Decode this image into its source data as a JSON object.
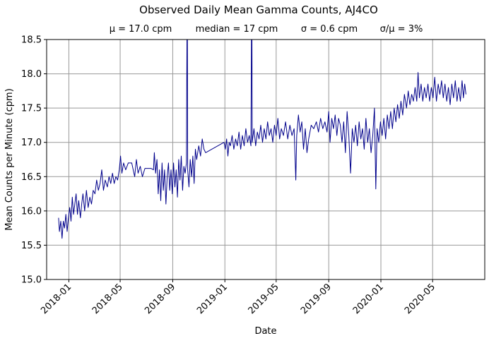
{
  "chart_data": {
    "type": "line",
    "title": "Observed Daily Mean Gamma Counts, AJ4CO",
    "subtitle": [
      "μ = 17.0 cpm",
      "median = 17 cpm",
      "σ = 0.6 cpm",
      "σ/μ = 3%"
    ],
    "xlabel": "Date",
    "ylabel": "Mean Counts per Minute (cpm)",
    "ylim": [
      15.0,
      18.5
    ],
    "xlim": [
      "2017-11-10",
      "2020-08-31"
    ],
    "yticks": [
      "15.0",
      "15.5",
      "16.0",
      "16.5",
      "17.0",
      "17.5",
      "18.0",
      "18.5"
    ],
    "xticks": [
      "2018-01",
      "2018-05",
      "2018-09",
      "2019-01",
      "2019-05",
      "2019-09",
      "2020-01",
      "2020-05"
    ],
    "grid": true,
    "line_color": "#00008b",
    "series": [
      {
        "name": "Daily mean gamma counts",
        "points": [
          [
            "2017-12-08",
            15.9
          ],
          [
            "2017-12-10",
            15.7
          ],
          [
            "2017-12-13",
            15.85
          ],
          [
            "2017-12-16",
            15.6
          ],
          [
            "2017-12-19",
            15.85
          ],
          [
            "2017-12-22",
            15.75
          ],
          [
            "2017-12-25",
            15.95
          ],
          [
            "2017-12-28",
            15.7
          ],
          [
            "2017-12-31",
            15.9
          ],
          [
            "2018-01-03",
            16.05
          ],
          [
            "2018-01-06",
            15.85
          ],
          [
            "2018-01-09",
            16.2
          ],
          [
            "2018-01-12",
            15.95
          ],
          [
            "2018-01-15",
            16.1
          ],
          [
            "2018-01-18",
            16.25
          ],
          [
            "2018-01-21",
            15.95
          ],
          [
            "2018-01-24",
            16.15
          ],
          [
            "2018-01-28",
            15.9
          ],
          [
            "2018-01-31",
            16.1
          ],
          [
            "2018-02-03",
            16.25
          ],
          [
            "2018-02-07",
            16.0
          ],
          [
            "2018-02-11",
            16.3
          ],
          [
            "2018-02-15",
            16.05
          ],
          [
            "2018-02-19",
            16.2
          ],
          [
            "2018-02-23",
            16.1
          ],
          [
            "2018-02-27",
            16.3
          ],
          [
            "2018-03-03",
            16.25
          ],
          [
            "2018-03-07",
            16.45
          ],
          [
            "2018-03-11",
            16.3
          ],
          [
            "2018-03-15",
            16.4
          ],
          [
            "2018-03-19",
            16.6
          ],
          [
            "2018-03-23",
            16.3
          ],
          [
            "2018-03-27",
            16.45
          ],
          [
            "2018-04-01",
            16.35
          ],
          [
            "2018-04-05",
            16.5
          ],
          [
            "2018-04-09",
            16.4
          ],
          [
            "2018-04-13",
            16.55
          ],
          [
            "2018-04-17",
            16.4
          ],
          [
            "2018-04-21",
            16.5
          ],
          [
            "2018-04-25",
            16.45
          ],
          [
            "2018-04-29",
            16.6
          ],
          [
            "2018-05-02",
            16.8
          ],
          [
            "2018-05-05",
            16.55
          ],
          [
            "2018-05-09",
            16.7
          ],
          [
            "2018-05-14",
            16.6
          ],
          [
            "2018-05-20",
            16.7
          ],
          [
            "2018-05-28",
            16.7
          ],
          [
            "2018-06-04",
            16.5
          ],
          [
            "2018-06-08",
            16.75
          ],
          [
            "2018-06-12",
            16.55
          ],
          [
            "2018-06-17",
            16.65
          ],
          [
            "2018-06-22",
            16.5
          ],
          [
            "2018-06-28",
            16.62
          ],
          [
            "2018-07-05",
            16.62
          ],
          [
            "2018-07-12",
            16.62
          ],
          [
            "2018-07-18",
            16.6
          ],
          [
            "2018-07-20",
            16.85
          ],
          [
            "2018-07-23",
            16.55
          ],
          [
            "2018-07-26",
            16.75
          ],
          [
            "2018-07-29",
            16.25
          ],
          [
            "2018-08-01",
            16.6
          ],
          [
            "2018-08-04",
            16.15
          ],
          [
            "2018-08-07",
            16.7
          ],
          [
            "2018-08-10",
            16.3
          ],
          [
            "2018-08-13",
            16.6
          ],
          [
            "2018-08-16",
            16.1
          ],
          [
            "2018-08-19",
            16.5
          ],
          [
            "2018-08-22",
            16.7
          ],
          [
            "2018-08-25",
            16.3
          ],
          [
            "2018-08-28",
            16.6
          ],
          [
            "2018-08-31",
            16.25
          ],
          [
            "2018-09-03",
            16.7
          ],
          [
            "2018-09-06",
            16.35
          ],
          [
            "2018-09-09",
            16.6
          ],
          [
            "2018-09-12",
            16.2
          ],
          [
            "2018-09-15",
            16.75
          ],
          [
            "2018-09-18",
            16.45
          ],
          [
            "2018-09-21",
            16.8
          ],
          [
            "2018-09-24",
            16.3
          ],
          [
            "2018-09-27",
            16.65
          ],
          [
            "2018-09-30",
            16.55
          ],
          [
            "2018-10-03",
            16.7
          ],
          [
            "2018-10-05",
            19.5
          ],
          [
            "2018-10-06",
            16.6
          ],
          [
            "2018-10-09",
            16.35
          ],
          [
            "2018-10-12",
            16.75
          ],
          [
            "2018-10-15",
            16.5
          ],
          [
            "2018-10-18",
            16.8
          ],
          [
            "2018-10-21",
            16.4
          ],
          [
            "2018-10-24",
            16.9
          ],
          [
            "2018-10-27",
            16.75
          ],
          [
            "2018-11-01",
            16.95
          ],
          [
            "2018-11-05",
            16.8
          ],
          [
            "2018-11-09",
            17.05
          ],
          [
            "2018-11-13",
            16.9
          ],
          [
            "2018-11-17",
            16.85
          ],
          [
            "2018-12-30",
            17.0
          ],
          [
            "2019-01-02",
            16.9
          ],
          [
            "2019-01-05",
            17.05
          ],
          [
            "2019-01-08",
            16.8
          ],
          [
            "2019-01-11",
            17.0
          ],
          [
            "2019-01-14",
            16.95
          ],
          [
            "2019-01-18",
            17.1
          ],
          [
            "2019-01-22",
            16.9
          ],
          [
            "2019-01-26",
            17.05
          ],
          [
            "2019-01-30",
            16.95
          ],
          [
            "2019-02-03",
            17.15
          ],
          [
            "2019-02-07",
            16.9
          ],
          [
            "2019-02-11",
            17.1
          ],
          [
            "2019-02-15",
            16.95
          ],
          [
            "2019-02-19",
            17.2
          ],
          [
            "2019-02-23",
            17.0
          ],
          [
            "2019-02-27",
            17.1
          ],
          [
            "2019-03-03",
            16.95
          ],
          [
            "2019-03-05",
            19.5
          ],
          [
            "2019-03-06",
            17.0
          ],
          [
            "2019-03-10",
            17.2
          ],
          [
            "2019-03-14",
            16.95
          ],
          [
            "2019-03-18",
            17.15
          ],
          [
            "2019-03-22",
            17.05
          ],
          [
            "2019-03-26",
            17.25
          ],
          [
            "2019-03-30",
            17.0
          ],
          [
            "2019-04-03",
            17.2
          ],
          [
            "2019-04-07",
            17.05
          ],
          [
            "2019-04-11",
            17.3
          ],
          [
            "2019-04-15",
            17.1
          ],
          [
            "2019-04-19",
            17.2
          ],
          [
            "2019-04-23",
            17.0
          ],
          [
            "2019-04-27",
            17.25
          ],
          [
            "2019-05-01",
            17.1
          ],
          [
            "2019-05-05",
            17.35
          ],
          [
            "2019-05-09",
            17.05
          ],
          [
            "2019-05-13",
            17.2
          ],
          [
            "2019-05-18",
            17.1
          ],
          [
            "2019-05-23",
            17.3
          ],
          [
            "2019-05-28",
            17.05
          ],
          [
            "2019-06-02",
            17.25
          ],
          [
            "2019-06-07",
            17.1
          ],
          [
            "2019-06-12",
            17.2
          ],
          [
            "2019-06-16",
            16.45
          ],
          [
            "2019-06-18",
            17.1
          ],
          [
            "2019-06-22",
            17.4
          ],
          [
            "2019-06-26",
            17.15
          ],
          [
            "2019-06-30",
            17.3
          ],
          [
            "2019-07-04",
            16.9
          ],
          [
            "2019-07-08",
            17.2
          ],
          [
            "2019-07-12",
            16.85
          ],
          [
            "2019-07-16",
            17.05
          ],
          [
            "2019-07-22",
            17.25
          ],
          [
            "2019-07-28",
            17.2
          ],
          [
            "2019-08-03",
            17.3
          ],
          [
            "2019-08-08",
            17.15
          ],
          [
            "2019-08-13",
            17.35
          ],
          [
            "2019-08-18",
            17.2
          ],
          [
            "2019-08-23",
            17.3
          ],
          [
            "2019-08-28",
            17.15
          ],
          [
            "2019-09-01",
            17.45
          ],
          [
            "2019-09-04",
            17.0
          ],
          [
            "2019-09-08",
            17.35
          ],
          [
            "2019-09-12",
            17.2
          ],
          [
            "2019-09-16",
            17.4
          ],
          [
            "2019-09-20",
            17.1
          ],
          [
            "2019-09-24",
            17.35
          ],
          [
            "2019-09-28",
            17.25
          ],
          [
            "2019-10-02",
            17.0
          ],
          [
            "2019-10-06",
            17.3
          ],
          [
            "2019-10-10",
            16.85
          ],
          [
            "2019-10-14",
            17.45
          ],
          [
            "2019-10-18",
            17.1
          ],
          [
            "2019-10-22",
            16.55
          ],
          [
            "2019-10-26",
            17.2
          ],
          [
            "2019-10-30",
            17.0
          ],
          [
            "2019-11-03",
            17.25
          ],
          [
            "2019-11-07",
            16.95
          ],
          [
            "2019-11-11",
            17.3
          ],
          [
            "2019-11-15",
            17.05
          ],
          [
            "2019-11-19",
            17.2
          ],
          [
            "2019-11-23",
            16.9
          ],
          [
            "2019-11-27",
            17.35
          ],
          [
            "2019-12-01",
            17.0
          ],
          [
            "2019-12-05",
            17.2
          ],
          [
            "2019-12-09",
            16.85
          ],
          [
            "2019-12-13",
            17.1
          ],
          [
            "2019-12-17",
            17.5
          ],
          [
            "2019-12-20",
            16.32
          ],
          [
            "2019-12-23",
            17.2
          ],
          [
            "2019-12-27",
            17.0
          ],
          [
            "2019-12-31",
            17.3
          ],
          [
            "2020-01-04",
            17.1
          ],
          [
            "2020-01-08",
            17.35
          ],
          [
            "2020-01-12",
            17.05
          ],
          [
            "2020-01-16",
            17.4
          ],
          [
            "2020-01-20",
            17.2
          ],
          [
            "2020-01-24",
            17.45
          ],
          [
            "2020-01-28",
            17.2
          ],
          [
            "2020-02-01",
            17.5
          ],
          [
            "2020-02-05",
            17.3
          ],
          [
            "2020-02-09",
            17.55
          ],
          [
            "2020-02-13",
            17.35
          ],
          [
            "2020-02-17",
            17.6
          ],
          [
            "2020-02-21",
            17.4
          ],
          [
            "2020-02-25",
            17.7
          ],
          [
            "2020-03-01",
            17.5
          ],
          [
            "2020-03-05",
            17.75
          ],
          [
            "2020-03-09",
            17.55
          ],
          [
            "2020-03-13",
            17.7
          ],
          [
            "2020-03-17",
            17.6
          ],
          [
            "2020-03-21",
            17.8
          ],
          [
            "2020-03-25",
            17.6
          ],
          [
            "2020-03-28",
            18.02
          ],
          [
            "2020-03-31",
            17.65
          ],
          [
            "2020-04-04",
            17.85
          ],
          [
            "2020-04-08",
            17.6
          ],
          [
            "2020-04-12",
            17.8
          ],
          [
            "2020-04-16",
            17.65
          ],
          [
            "2020-04-20",
            17.85
          ],
          [
            "2020-04-24",
            17.6
          ],
          [
            "2020-04-28",
            17.8
          ],
          [
            "2020-05-02",
            17.65
          ],
          [
            "2020-05-06",
            17.95
          ],
          [
            "2020-05-10",
            17.6
          ],
          [
            "2020-05-14",
            17.85
          ],
          [
            "2020-05-18",
            17.7
          ],
          [
            "2020-05-22",
            17.9
          ],
          [
            "2020-05-26",
            17.65
          ],
          [
            "2020-05-30",
            17.85
          ],
          [
            "2020-06-03",
            17.6
          ],
          [
            "2020-06-07",
            17.8
          ],
          [
            "2020-06-11",
            17.55
          ],
          [
            "2020-06-15",
            17.85
          ],
          [
            "2020-06-19",
            17.65
          ],
          [
            "2020-06-23",
            17.9
          ],
          [
            "2020-06-27",
            17.6
          ],
          [
            "2020-07-01",
            17.8
          ],
          [
            "2020-07-05",
            17.6
          ],
          [
            "2020-07-09",
            17.9
          ],
          [
            "2020-07-12",
            17.65
          ],
          [
            "2020-07-15",
            17.85
          ],
          [
            "2020-07-18",
            17.7
          ]
        ]
      }
    ]
  }
}
